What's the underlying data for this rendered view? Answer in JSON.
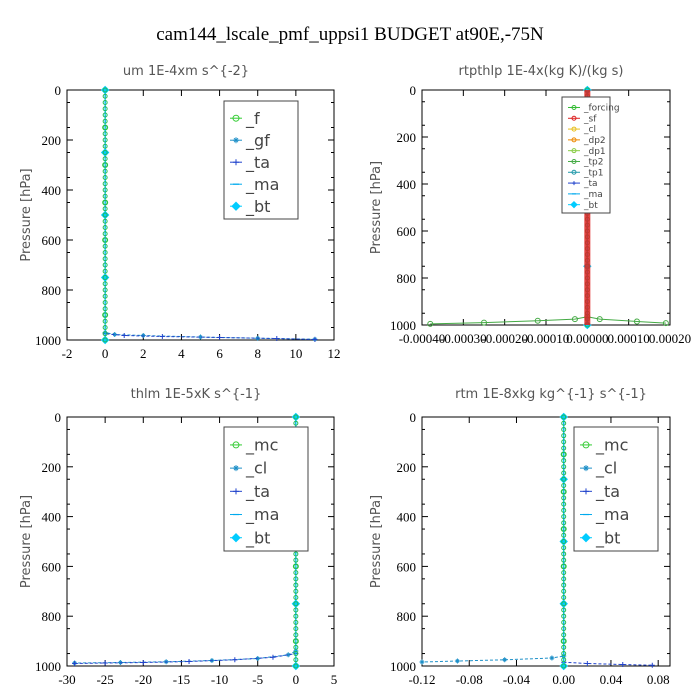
{
  "figure": {
    "title": "cam144_lscale_pmf_uppsi1  BUDGET at90E,-75N"
  },
  "chart_data": [
    {
      "type": "line",
      "title": "um   1E-4xm s^{-2}",
      "ylabel": "Pressure [hPa]",
      "xlim": [
        -2,
        12
      ],
      "ylim": [
        1000,
        0
      ],
      "xticks": [
        -2,
        0,
        2,
        4,
        6,
        8,
        10,
        12
      ],
      "xtick_labels": [
        "-2",
        "0",
        "2",
        "4",
        "6",
        "8",
        "10",
        "12"
      ],
      "yticks": [
        0,
        200,
        400,
        600,
        800,
        1000
      ],
      "legend_position": "top-right",
      "series": [
        {
          "name": "_f",
          "color": "#33cc33",
          "marker": "circle",
          "x": [
            0,
            0,
            0,
            0,
            0,
            0,
            0,
            0
          ],
          "y": [
            0,
            150,
            300,
            450,
            600,
            750,
            900,
            1000
          ]
        },
        {
          "name": "_gf",
          "color": "#1e90c8",
          "marker": "star",
          "x": [
            0,
            0,
            0,
            0.5,
            2,
            5,
            8,
            11
          ],
          "y": [
            0,
            500,
            970,
            978,
            982,
            988,
            993,
            997
          ]
        },
        {
          "name": "_ta",
          "color": "#2244cc",
          "marker": "plus",
          "x": [
            0,
            0,
            0,
            1,
            3,
            6,
            9,
            11
          ],
          "y": [
            0,
            500,
            975,
            982,
            986,
            990,
            994,
            998
          ]
        },
        {
          "name": "_ma",
          "color": "#00aaee",
          "marker": "dash",
          "x": [
            0,
            0,
            0,
            0,
            0
          ],
          "y": [
            0,
            250,
            500,
            750,
            1000
          ]
        },
        {
          "name": "_bt",
          "color": "#00ccff",
          "marker": "diamond",
          "x": [
            0,
            0,
            0,
            0,
            0
          ],
          "y": [
            0,
            250,
            500,
            750,
            1000
          ]
        }
      ]
    },
    {
      "type": "line",
      "title": "rtpthlp   1E-4x(kg K)/(kg s)",
      "ylabel": "Pressure [hPa]",
      "xlim": [
        -0.0004,
        0.0002
      ],
      "ylim": [
        1000,
        0
      ],
      "xticks": [
        -0.0004,
        -0.0003,
        -0.0002,
        -0.0001,
        0,
        0.0001,
        0.0002
      ],
      "xtick_labels": [
        "-0.00040",
        "-0.00030",
        "-0.00020",
        "-0.00010",
        "0.00000",
        "0.00010",
        "0.00020"
      ],
      "yticks": [
        0,
        200,
        400,
        600,
        800,
        1000
      ],
      "legend_position": "top-right",
      "series": [
        {
          "name": "_forcing",
          "color": "#33bb33",
          "marker": "circle",
          "x": [
            0,
            0,
            0,
            0,
            0
          ],
          "y": [
            0,
            250,
            500,
            750,
            1000
          ]
        },
        {
          "name": "_sf",
          "color": "#dd2222",
          "marker": "circle",
          "x": [
            0,
            0,
            0,
            0,
            0
          ],
          "y": [
            0,
            250,
            500,
            750,
            1000
          ]
        },
        {
          "name": "_cl",
          "color": "#e8c020",
          "marker": "circle",
          "x": [
            0,
            0,
            0,
            0,
            0
          ],
          "y": [
            0,
            250,
            500,
            750,
            1000
          ]
        },
        {
          "name": "_dp2",
          "color": "#ee8800",
          "marker": "circle",
          "x": [
            0,
            0,
            0,
            0,
            0
          ],
          "y": [
            0,
            250,
            500,
            750,
            1000
          ]
        },
        {
          "name": "_dp1",
          "color": "#88cc44",
          "marker": "circle",
          "x": [
            0,
            0,
            0,
            0,
            0
          ],
          "y": [
            0,
            250,
            500,
            750,
            1000
          ]
        },
        {
          "name": "_tp2",
          "color": "#44aa44",
          "marker": "circle",
          "x": [
            -0.00038,
            -0.00025,
            -0.00012,
            -3e-05,
            0,
            3e-05,
            0.00012,
            0.00019
          ],
          "y": [
            995,
            990,
            982,
            975,
            965,
            975,
            985,
            992
          ]
        },
        {
          "name": "_tp1",
          "color": "#2299aa",
          "marker": "circle",
          "x": [
            0,
            0,
            0,
            0,
            0
          ],
          "y": [
            0,
            250,
            500,
            750,
            1000
          ]
        },
        {
          "name": "_ta",
          "color": "#2244cc",
          "marker": "plus",
          "x": [
            0,
            0,
            0,
            0,
            0
          ],
          "y": [
            0,
            250,
            500,
            750,
            1000
          ]
        },
        {
          "name": "_ma",
          "color": "#00aaee",
          "marker": "dash",
          "x": [
            0,
            0,
            0,
            0,
            0
          ],
          "y": [
            0,
            250,
            500,
            750,
            1000
          ]
        },
        {
          "name": "_bt",
          "color": "#00ccff",
          "marker": "diamond",
          "x": [
            0,
            0,
            0,
            0,
            0
          ],
          "y": [
            0,
            250,
            500,
            750,
            1000
          ]
        }
      ]
    },
    {
      "type": "line",
      "title": "thlm   1E-5xK s^{-1}",
      "ylabel": "Pressure [hPa]",
      "xlim": [
        -30,
        5
      ],
      "ylim": [
        1000,
        0
      ],
      "xticks": [
        -30,
        -25,
        -20,
        -15,
        -10,
        -5,
        0,
        5
      ],
      "xtick_labels": [
        "-30",
        "-25",
        "-20",
        "-15",
        "-10",
        "-5",
        "0",
        "5"
      ],
      "yticks": [
        0,
        200,
        400,
        600,
        800,
        1000
      ],
      "legend_position": "top-right",
      "series": [
        {
          "name": "_mc",
          "color": "#33cc33",
          "marker": "circle",
          "x": [
            0,
            0,
            0,
            0,
            0,
            0,
            0,
            0
          ],
          "y": [
            0,
            150,
            300,
            450,
            600,
            750,
            900,
            1000
          ]
        },
        {
          "name": "_cl",
          "color": "#1e90c8",
          "marker": "star",
          "x": [
            0,
            0,
            -1,
            -5,
            -11,
            -17,
            -23,
            -29
          ],
          "y": [
            0,
            940,
            955,
            970,
            978,
            983,
            986,
            988
          ]
        },
        {
          "name": "_ta",
          "color": "#2244cc",
          "marker": "plus",
          "x": [
            0,
            0,
            -3,
            -8,
            -14,
            -20,
            -25,
            -29
          ],
          "y": [
            0,
            950,
            965,
            975,
            982,
            986,
            988,
            990
          ]
        },
        {
          "name": "_ma",
          "color": "#00aaee",
          "marker": "dash",
          "x": [
            0,
            0,
            0,
            0,
            0
          ],
          "y": [
            0,
            250,
            500,
            750,
            1000
          ]
        },
        {
          "name": "_bt",
          "color": "#00ccff",
          "marker": "diamond",
          "x": [
            0,
            0,
            0,
            0,
            0
          ],
          "y": [
            0,
            250,
            500,
            750,
            1000
          ]
        }
      ]
    },
    {
      "type": "line",
      "title": "rtm   1E-8xkg kg^{-1} s^{-1}",
      "ylabel": "Pressure [hPa]",
      "xlim": [
        -0.12,
        0.09
      ],
      "ylim": [
        1000,
        0
      ],
      "xticks": [
        -0.12,
        -0.08,
        -0.04,
        0,
        0.04,
        0.08
      ],
      "xtick_labels": [
        "-0.12",
        "-0.08",
        "-0.04",
        "0.00",
        "0.04",
        "0.08"
      ],
      "yticks": [
        0,
        200,
        400,
        600,
        800,
        1000
      ],
      "legend_position": "top-right",
      "series": [
        {
          "name": "_mc",
          "color": "#33cc33",
          "marker": "circle",
          "x": [
            0,
            0,
            0,
            0,
            0,
            0,
            0,
            0
          ],
          "y": [
            0,
            150,
            300,
            450,
            600,
            750,
            900,
            1000
          ]
        },
        {
          "name": "_cl",
          "color": "#1e90c8",
          "marker": "star",
          "x": [
            0,
            0,
            -0.01,
            -0.05,
            -0.09,
            -0.12
          ],
          "y": [
            0,
            960,
            968,
            975,
            980,
            984
          ]
        },
        {
          "name": "_ta",
          "color": "#2244cc",
          "marker": "plus",
          "x": [
            0,
            0,
            0.02,
            0.05,
            0.075
          ],
          "y": [
            0,
            985,
            990,
            994,
            997
          ]
        },
        {
          "name": "_ma",
          "color": "#00aaee",
          "marker": "dash",
          "x": [
            0,
            0,
            0,
            0,
            0
          ],
          "y": [
            0,
            250,
            500,
            750,
            1000
          ]
        },
        {
          "name": "_bt",
          "color": "#00ccff",
          "marker": "diamond",
          "x": [
            0,
            0,
            0,
            0,
            0
          ],
          "y": [
            0,
            250,
            500,
            750,
            1000
          ]
        }
      ]
    }
  ]
}
